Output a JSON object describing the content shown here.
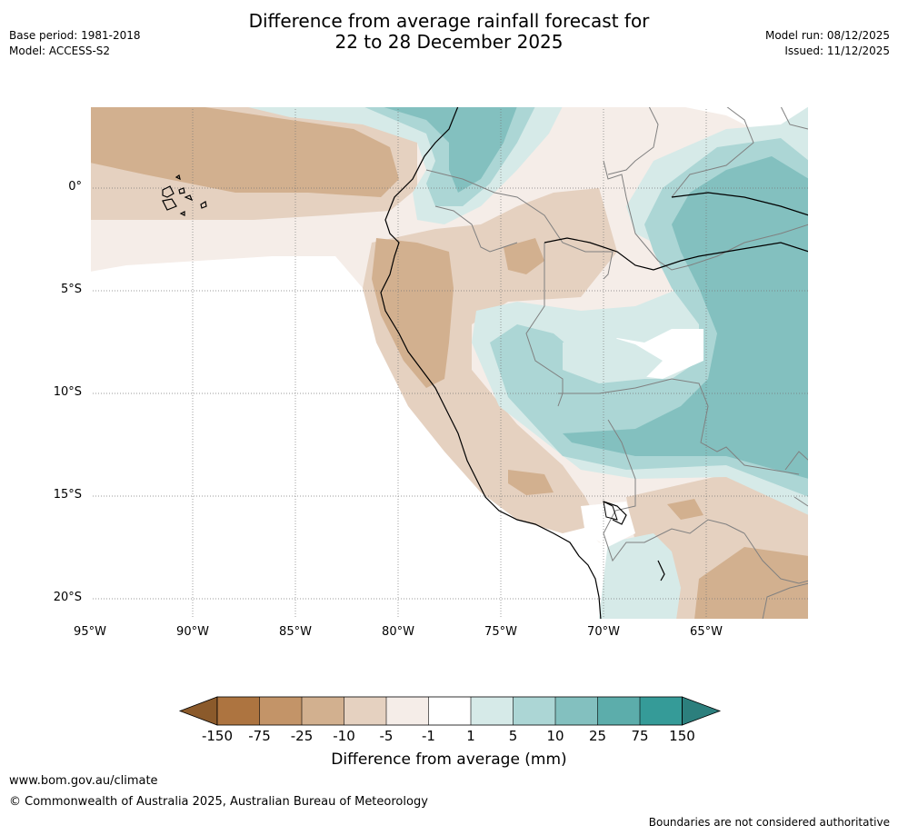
{
  "header": {
    "title_line1": "Difference from average rainfall forecast for",
    "title_line2": "22 to 28 December 2025",
    "base_period": "Base period: 1981-2018",
    "model": "Model: ACCESS-S2",
    "model_run": "Model run: 08/12/2025",
    "issued": "Issued: 11/12/2025"
  },
  "map": {
    "region": "Western South America",
    "lat_labels": [
      "0°",
      "5°S",
      "10°S",
      "15°S",
      "20°S"
    ],
    "lon_labels": [
      "95°W",
      "90°W",
      "85°W",
      "80°W",
      "75°W",
      "70°W",
      "65°W"
    ]
  },
  "legend": {
    "title": "Difference from average (mm)",
    "tick_labels": [
      "-150",
      "-75",
      "-25",
      "-10",
      "-5",
      "-1",
      "1",
      "5",
      "10",
      "25",
      "75",
      "150"
    ],
    "colors": [
      "#8b5a2b",
      "#ad7440",
      "#c39468",
      "#d2b08f",
      "#e5d1c0",
      "#f5ede8",
      "#ffffff",
      "#d6eae8",
      "#acd6d5",
      "#83c0bf",
      "#5cadab",
      "#359b98",
      "#2c7f7d"
    ]
  },
  "footer": {
    "website": "www.bom.gov.au/climate",
    "copyright": "© Commonwealth of Australia 2025, Australian Bureau of Meteorology",
    "disclaimer": "Boundaries are not considered authoritative"
  }
}
